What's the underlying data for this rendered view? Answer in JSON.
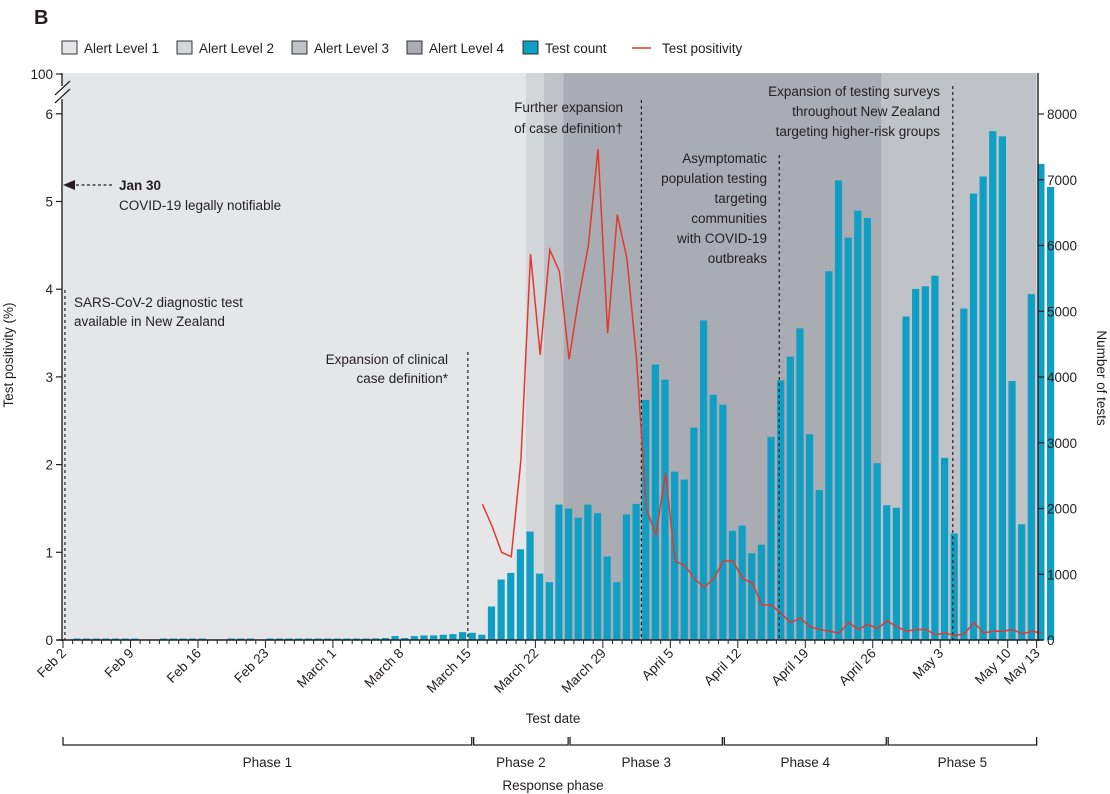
{
  "panel_label": "B",
  "chart_data": {
    "type": "bar+line",
    "title": "",
    "xlabel": "Test date",
    "ylabel_left": "Test positivity (%)",
    "ylabel_right": "Number of tests",
    "bottom_axis_title": "Response phase",
    "start_date": "Feb 2",
    "end_date": "May 13",
    "y_left_ticks": [
      "0",
      "1",
      "2",
      "3",
      "4",
      "5",
      "6",
      "100"
    ],
    "y_left_range": [
      0,
      6.45
    ],
    "y_left_break": {
      "from": 6.45,
      "to_label": "100"
    },
    "y_right_ticks": [
      "0",
      "1000",
      "2000",
      "3000",
      "4000",
      "5000",
      "6000",
      "7000",
      "8000"
    ],
    "y_right_range": [
      0,
      8000
    ],
    "x_tick_labels": [
      {
        "day": 0,
        "label": "Feb 2"
      },
      {
        "day": 7,
        "label": "Feb 9"
      },
      {
        "day": 14,
        "label": "Feb 16"
      },
      {
        "day": 21,
        "label": "Feb 23"
      },
      {
        "day": 28,
        "label": "March 1"
      },
      {
        "day": 35,
        "label": "March 8"
      },
      {
        "day": 42,
        "label": "March 15"
      },
      {
        "day": 49,
        "label": "March 22"
      },
      {
        "day": 56,
        "label": "March 29"
      },
      {
        "day": 63,
        "label": "April 5"
      },
      {
        "day": 70,
        "label": "April 12"
      },
      {
        "day": 77,
        "label": "April 19"
      },
      {
        "day": 84,
        "label": "April 26"
      },
      {
        "day": 91,
        "label": "May 3"
      },
      {
        "day": 98,
        "label": "May 10"
      },
      {
        "day": 101,
        "label": "May 13"
      }
    ],
    "legend": [
      {
        "key": "alert1",
        "label": "Alert Level 1",
        "color": "#e5e6e8"
      },
      {
        "key": "alert2",
        "label": "Alert Level 2",
        "color": "#d3d6d9"
      },
      {
        "key": "alert3",
        "label": "Alert Level 3",
        "color": "#bfc3c7"
      },
      {
        "key": "alert4",
        "label": "Alert Level 4",
        "color": "#a9adb3"
      },
      {
        "key": "tests",
        "label": "Test count",
        "color": "#0f9ec4"
      },
      {
        "key": "positivity",
        "label": "Test positivity",
        "color": "#e03a2f"
      }
    ],
    "legend_position": "top-left",
    "alert_periods": [
      {
        "level": 1,
        "start_day": 0,
        "end_day": 48.5
      },
      {
        "level": 2,
        "start_day": 48.5,
        "end_day": 50.4
      },
      {
        "level": 3,
        "start_day": 50.4,
        "end_day": 52.4
      },
      {
        "level": 4,
        "start_day": 52.4,
        "end_day": 85.4
      },
      {
        "level": 3,
        "start_day": 85.4,
        "end_day": 101.5
      }
    ],
    "series": [
      {
        "name": "Test count",
        "type": "bar",
        "axis": "right",
        "values": [
          0,
          5,
          5,
          5,
          5,
          10,
          10,
          10,
          0,
          0,
          10,
          10,
          20,
          20,
          10,
          0,
          0,
          5,
          10,
          5,
          0,
          5,
          5,
          5,
          10,
          10,
          10,
          10,
          10,
          15,
          20,
          20,
          25,
          30,
          60,
          30,
          60,
          70,
          70,
          80,
          90,
          120,
          110,
          80,
          510,
          920,
          1020,
          1380,
          1650,
          1010,
          880,
          2060,
          2000,
          1860,
          2060,
          1930,
          1270,
          880,
          1910,
          2070,
          3650,
          4190,
          3960,
          2560,
          2440,
          3230,
          4860,
          3730,
          3580,
          1660,
          1740,
          1320,
          1450,
          3090,
          3950,
          4310,
          4740,
          3130,
          2280,
          5610,
          6990,
          6120,
          6530,
          6420,
          2690,
          2050,
          2010,
          4920,
          5340,
          5380,
          5540,
          2770,
          1620,
          5040,
          6790,
          7050,
          7740,
          7660,
          3940,
          1760,
          5260,
          7240,
          6890
        ],
        "note_values_from_day": 0
      },
      {
        "name": "Test positivity",
        "type": "line",
        "axis": "left",
        "start_day": 43,
        "values": [
          1.55,
          1.3,
          1.0,
          0.95,
          2.05,
          4.4,
          3.25,
          4.45,
          4.2,
          3.2,
          3.9,
          4.5,
          5.6,
          3.5,
          4.85,
          4.35,
          3.2,
          1.5,
          1.2,
          1.9,
          0.9,
          0.85,
          0.7,
          0.6,
          0.7,
          0.9,
          0.9,
          0.7,
          0.65,
          0.4,
          0.4,
          0.3,
          0.2,
          0.25,
          0.15,
          0.12,
          0.1,
          0.08,
          0.2,
          0.12,
          0.18,
          0.13,
          0.22,
          0.15,
          0.1,
          0.12,
          0.12,
          0.06,
          0.08,
          0.05,
          0.07,
          0.2,
          0.08,
          0.1,
          0.1,
          0.12,
          0.07,
          0.1,
          0.08
        ]
      }
    ],
    "annotations": [
      {
        "id": "jan30",
        "title": "Jan 30",
        "text": "COVID-19 legally notifiable"
      },
      {
        "id": "sars",
        "lines": [
          "SARS-CoV-2 diagnostic test",
          "available in New Zealand"
        ],
        "day": 0.2
      },
      {
        "id": "clinical",
        "lines": [
          "Expansion of clinical",
          "case definition*"
        ],
        "day": 41.5
      },
      {
        "id": "further",
        "lines": [
          "Further expansion",
          "of case definition†"
        ],
        "day": 59.5
      },
      {
        "id": "asymptomatic",
        "lines": [
          "Asymptomatic",
          "population testing",
          "targeting",
          "communities",
          "with COVID-19",
          "outbreaks"
        ],
        "day": 73.8
      },
      {
        "id": "surveys",
        "lines": [
          "Expansion of testing surveys",
          "throughout New Zealand",
          "targeting higher-risk groups"
        ],
        "day": 91.8
      }
    ],
    "phases": [
      {
        "label": "Phase 1",
        "start_day": 0,
        "end_day": 42.4
      },
      {
        "label": "Phase 2",
        "start_day": 42.6,
        "end_day": 52.4
      },
      {
        "label": "Phase 3",
        "start_day": 52.6,
        "end_day": 68.4
      },
      {
        "label": "Phase 4",
        "start_day": 68.6,
        "end_day": 85.4
      },
      {
        "label": "Phase 5",
        "start_day": 85.6,
        "end_day": 101
      }
    ]
  }
}
